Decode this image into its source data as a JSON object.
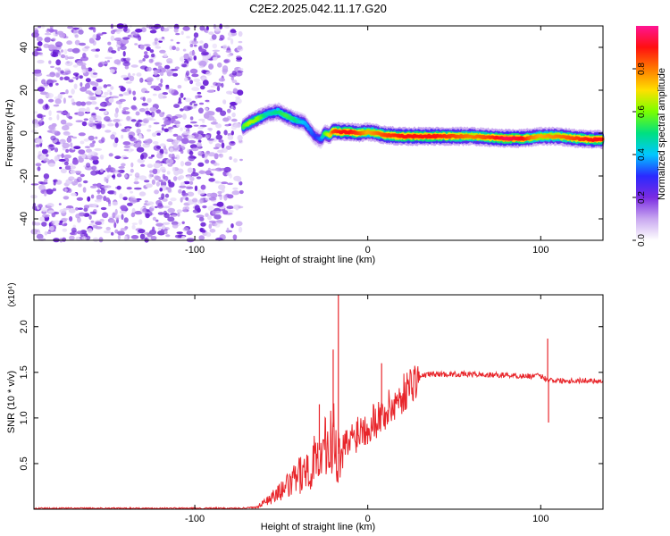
{
  "title": "C2E2.2025.042.11.17.G20",
  "colors": {
    "noise": "#8a4bdc",
    "line": "#e8262b",
    "colormap": [
      "#ffffff",
      "#c9a8f0",
      "#7a2be2",
      "#2a2aff",
      "#00c8ff",
      "#00e080",
      "#7aff00",
      "#ffe000",
      "#ff7a00",
      "#ff1010",
      "#ff1493"
    ]
  },
  "chart_data": [
    {
      "type": "heatmap",
      "xlabel": "Height of straight line (km)",
      "ylabel": "Frequency (Hz)",
      "xlim": [
        -193,
        136
      ],
      "ylim": [
        -50,
        50
      ],
      "x_ticks": [
        -100,
        0,
        100
      ],
      "y_ticks": [
        -40,
        -20,
        0,
        20,
        40
      ],
      "colorbar": {
        "label": "Normalized spectral amplitude",
        "range": [
          0.0,
          1.0
        ],
        "ticks": [
          "0.0",
          "0.2",
          "0.4",
          "0.6",
          "0.8"
        ]
      },
      "noise_region_x": [
        -193,
        -73
      ],
      "ridge": {
        "x": [
          -72,
          -68,
          -63,
          -58,
          -52,
          -47,
          -42,
          -37,
          -33,
          -30,
          -27,
          -25,
          -22,
          -20,
          -15,
          -10,
          -5,
          0,
          5,
          10,
          20,
          30,
          40,
          50,
          60,
          70,
          80,
          90,
          95,
          100,
          110,
          120,
          130,
          136
        ],
        "y": [
          3,
          5,
          7,
          9,
          10,
          8,
          6,
          5,
          1,
          -2,
          -3,
          0,
          -1,
          1,
          0.5,
          0.5,
          0,
          0.5,
          0,
          -1,
          -1.5,
          -1.5,
          -1.5,
          -1.5,
          -1.5,
          -2,
          -2.5,
          -2.5,
          -2,
          -1.5,
          -1.5,
          -2.5,
          -3,
          -3
        ],
        "amplitude": [
          0.55,
          0.65,
          0.6,
          0.45,
          0.5,
          0.55,
          0.5,
          0.4,
          0.35,
          0.3,
          0.35,
          0.55,
          0.7,
          0.85,
          0.9,
          0.9,
          0.85,
          0.75,
          0.8,
          0.85,
          0.9,
          0.9,
          0.9,
          0.85,
          0.8,
          0.85,
          0.95,
          0.9,
          0.8,
          0.75,
          0.8,
          0.85,
          0.9,
          0.9
        ]
      }
    },
    {
      "type": "line",
      "xlabel": "Height of straight line (km)",
      "ylabel": "SNR (10 * v/v)",
      "yscale_label": "(x10⁴)",
      "xlim": [
        -193,
        136
      ],
      "ylim": [
        0,
        2.35
      ],
      "x_ticks": [
        -100,
        0,
        100
      ],
      "y_ticks": [
        0.5,
        1.0,
        1.5,
        2.0
      ],
      "series": [
        {
          "x": [
            -193,
            -150,
            -100,
            -75,
            -65,
            -60,
            -55,
            -50,
            -45,
            -40,
            -35,
            -30,
            -25,
            -22,
            -20,
            -18,
            -15,
            -10,
            -5,
            0,
            5,
            10,
            15,
            20,
            25,
            30,
            35,
            40,
            50,
            60,
            70,
            80,
            90,
            100,
            102,
            104,
            106,
            110,
            120,
            130,
            136
          ],
          "y": [
            0.01,
            0.01,
            0.01,
            0.01,
            0.02,
            0.08,
            0.15,
            0.22,
            0.3,
            0.4,
            0.5,
            0.6,
            0.72,
            0.8,
            0.9,
            0.6,
            0.62,
            0.75,
            0.88,
            0.92,
            1.0,
            1.05,
            1.15,
            1.25,
            1.38,
            1.45,
            1.48,
            1.48,
            1.48,
            1.48,
            1.47,
            1.47,
            1.46,
            1.46,
            1.44,
            1.42,
            1.42,
            1.41,
            1.41,
            1.41,
            1.4
          ]
        }
      ],
      "spikes": [
        {
          "x": -17,
          "y": 2.35
        },
        {
          "x": -20,
          "y": 1.75
        },
        {
          "x": -28,
          "y": 1.15
        },
        {
          "x": 8,
          "y": 1.6
        },
        {
          "x": 104,
          "y": 1.87
        },
        {
          "x": 104.5,
          "y": 0.95
        }
      ]
    }
  ]
}
